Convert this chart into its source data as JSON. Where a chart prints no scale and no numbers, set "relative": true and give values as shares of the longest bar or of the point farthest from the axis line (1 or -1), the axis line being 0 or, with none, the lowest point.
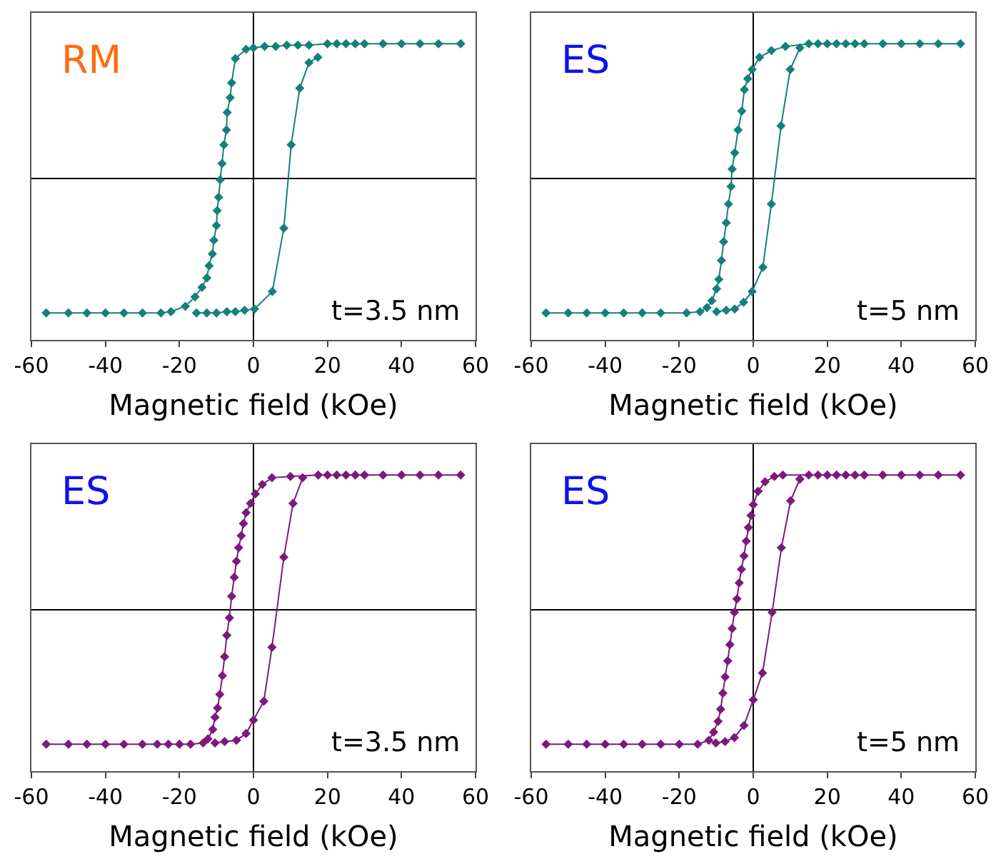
{
  "chart_data": [
    {
      "type": "line",
      "relative": true,
      "xlabel": "Magnetic field (kOe)",
      "xlim": [
        -60,
        60
      ],
      "xticks": [
        -60,
        -40,
        -20,
        0,
        20,
        40,
        60
      ],
      "tick_labels": "x",
      "marker": "diamond",
      "annotations": [
        "RM",
        "t=3.5 nm"
      ],
      "series": [
        {
          "color": "#14807b",
          "x": [
            -56,
            -50,
            -45,
            -40,
            -35,
            -30,
            -25,
            -22.3,
            -18.4,
            -15.8,
            -13.9,
            -12.6,
            -12,
            -11.1,
            -10.7,
            -10,
            -9.8,
            -9.4,
            -9,
            -8.5,
            -8,
            -7.3,
            -7.1,
            -6.3,
            -5.9,
            -4.9,
            -2,
            0,
            3,
            6,
            9,
            12,
            15,
            20,
            22.5,
            25,
            27.5,
            30,
            35,
            40,
            45,
            50,
            56
          ],
          "values": [
            -1,
            -1,
            -1,
            -1,
            -1,
            -1,
            -1,
            -0.99,
            -0.95,
            -0.88,
            -0.81,
            -0.74,
            -0.65,
            -0.56,
            -0.46,
            -0.35,
            -0.24,
            -0.14,
            -0.01,
            0.11,
            0.25,
            0.36,
            0.49,
            0.6,
            0.71,
            0.89,
            0.96,
            0.97,
            0.98,
            0.98,
            0.99,
            0.99,
            0.99,
            1,
            1,
            1,
            1,
            1,
            1,
            1,
            1,
            1,
            1
          ]
        },
        {
          "color": "#14807b",
          "x": [
            -15.4,
            -12.6,
            -10,
            -7.2,
            -4.9,
            -2.4,
            0.3,
            5.1,
            8.2,
            10.2,
            12.5,
            15,
            17.4
          ],
          "values": [
            -1,
            -1,
            -1,
            -0.99,
            -0.99,
            -0.98,
            -0.97,
            -0.84,
            -0.37,
            0.25,
            0.67,
            0.86,
            0.9
          ]
        }
      ]
    },
    {
      "type": "line",
      "relative": true,
      "xlabel": "Magnetic field (kOe)",
      "xlim": [
        -60,
        60
      ],
      "xticks": [
        -60,
        -40,
        -20,
        0,
        20,
        40,
        60
      ],
      "tick_labels": "x",
      "marker": "diamond",
      "annotations": [
        "ES",
        "t=5 nm"
      ],
      "series": [
        {
          "color": "#14807b",
          "x": [
            -56,
            -50,
            -45,
            -40,
            -35,
            -30,
            -25,
            -18,
            -14.4,
            -12.5,
            -11.2,
            -9.9,
            -9.3,
            -8.6,
            -8,
            -7.3,
            -6.7,
            -6,
            -5.7,
            -5,
            -4.1,
            -3.1,
            -2.4,
            -1.5,
            -0.3,
            1.7,
            4.9,
            8.7,
            15,
            17.5,
            20,
            22.5,
            25,
            27.5,
            30,
            35,
            40,
            45,
            50,
            56
          ],
          "values": [
            -1,
            -1,
            -1,
            -1,
            -1,
            -1,
            -1,
            -1,
            -0.99,
            -0.96,
            -0.91,
            -0.82,
            -0.75,
            -0.61,
            -0.47,
            -0.33,
            -0.19,
            -0.06,
            0.07,
            0.19,
            0.36,
            0.5,
            0.66,
            0.74,
            0.81,
            0.9,
            0.95,
            0.98,
            1,
            1,
            1,
            1,
            1,
            1,
            1,
            1,
            1,
            1,
            1,
            1
          ]
        },
        {
          "color": "#14807b",
          "x": [
            -9.9,
            -7.3,
            -5,
            -2.6,
            -0.3,
            2.6,
            4.9,
            7.5,
            10,
            12.6
          ],
          "values": [
            -0.99,
            -0.98,
            -0.97,
            -0.92,
            -0.84,
            -0.66,
            -0.19,
            0.39,
            0.81,
            0.97
          ]
        }
      ]
    },
    {
      "type": "line",
      "relative": true,
      "xlabel": "Magnetic field (kOe)",
      "xlim": [
        -60,
        60
      ],
      "xticks": [
        -60,
        -40,
        -20,
        0,
        20,
        40,
        60
      ],
      "tick_labels": "x",
      "marker": "diamond",
      "annotations": [
        "ES",
        "t=3.5 nm"
      ],
      "series": [
        {
          "color": "#7b1a7b",
          "x": [
            -56,
            -50,
            -45,
            -40,
            -35,
            -30,
            -26,
            -23,
            -20,
            -17,
            -13.6,
            -12.3,
            -11,
            -10.4,
            -9.7,
            -9.1,
            -8.4,
            -7.8,
            -7.2,
            -6.5,
            -5.9,
            -5.2,
            -4.6,
            -4,
            -3.3,
            -2.7,
            -2,
            -0.8,
            0.5,
            2.4,
            5,
            10,
            17.5,
            20,
            22.5,
            25,
            27.5,
            30,
            35,
            40,
            45,
            50,
            56
          ],
          "values": [
            -1,
            -1,
            -1,
            -1,
            -1,
            -1,
            -1,
            -1,
            -1,
            -1,
            -0.99,
            -0.96,
            -0.89,
            -0.8,
            -0.73,
            -0.63,
            -0.49,
            -0.35,
            -0.19,
            -0.06,
            0.1,
            0.24,
            0.36,
            0.46,
            0.55,
            0.64,
            0.72,
            0.79,
            0.86,
            0.93,
            0.98,
            0.99,
            1,
            1,
            1,
            1,
            1,
            1,
            1,
            1,
            1,
            1,
            1
          ]
        },
        {
          "color": "#7b1a7b",
          "x": [
            -10.4,
            -7.8,
            -4.6,
            -2,
            0,
            2.8,
            5,
            8.2,
            10.7,
            13.3
          ],
          "values": [
            -0.99,
            -0.98,
            -0.97,
            -0.92,
            -0.82,
            -0.68,
            -0.28,
            0.39,
            0.79,
            0.98
          ]
        }
      ]
    },
    {
      "type": "line",
      "relative": true,
      "xlabel": "Magnetic field (kOe)",
      "xlim": [
        -60,
        60
      ],
      "xticks": [
        -60,
        -40,
        -20,
        0,
        20,
        40,
        60
      ],
      "tick_labels": "x",
      "marker": "diamond",
      "annotations": [
        "ES",
        "t=5 nm"
      ],
      "series": [
        {
          "color": "#7b1a7b",
          "x": [
            -56,
            -50,
            -45,
            -40,
            -35,
            -30,
            -25,
            -20,
            -15,
            -12,
            -10.7,
            -9.5,
            -8.8,
            -8.2,
            -7.6,
            -6.9,
            -6.3,
            -5.7,
            -5.1,
            -4.4,
            -3.8,
            -3.2,
            -2.5,
            -1.9,
            -1.3,
            -0.6,
            0,
            1.3,
            3.2,
            5.7,
            8,
            15,
            17.5,
            20,
            22.5,
            25,
            27.5,
            30,
            35,
            40,
            45,
            50,
            56
          ],
          "values": [
            -1,
            -1,
            -1,
            -1,
            -1,
            -1,
            -1,
            -1,
            -1,
            -0.97,
            -0.91,
            -0.83,
            -0.74,
            -0.62,
            -0.5,
            -0.38,
            -0.26,
            -0.14,
            -0.02,
            0.08,
            0.2,
            0.3,
            0.4,
            0.51,
            0.61,
            0.7,
            0.78,
            0.88,
            0.95,
            0.99,
            1,
            1,
            1,
            1,
            1,
            1,
            1,
            1,
            1,
            1,
            1,
            1,
            1
          ]
        },
        {
          "color": "#7b1a7b",
          "x": [
            -10.1,
            -7.6,
            -5.1,
            -2.5,
            0,
            2.5,
            5.1,
            7.6,
            10.1,
            12.6
          ],
          "values": [
            -0.99,
            -0.98,
            -0.95,
            -0.86,
            -0.67,
            -0.47,
            -0.02,
            0.46,
            0.81,
            0.97
          ]
        }
      ]
    }
  ]
}
